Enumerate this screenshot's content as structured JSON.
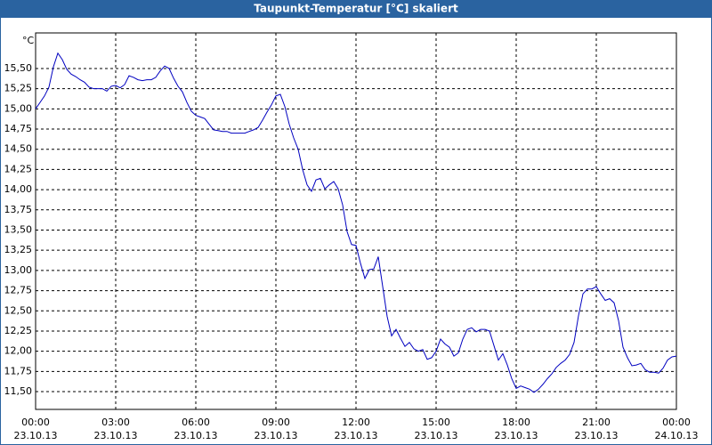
{
  "chart_data": {
    "type": "line",
    "title": "Taupunkt-Temperatur [°C] skaliert",
    "y_label": "°C",
    "x": [
      0,
      10,
      20,
      30,
      40,
      50,
      60,
      70,
      80,
      90,
      100,
      110,
      120,
      130,
      140,
      150,
      160,
      170,
      180,
      190,
      200,
      210,
      220,
      230,
      240,
      250,
      260,
      270,
      280,
      290,
      300,
      310,
      320,
      330,
      340,
      350,
      360,
      370,
      380,
      390,
      400,
      410,
      420,
      430,
      440,
      450,
      460,
      470,
      480,
      490,
      500,
      510,
      520,
      530,
      540,
      550,
      560,
      570,
      580,
      590,
      600,
      610,
      620,
      630,
      640,
      650,
      660,
      670,
      680,
      690,
      700,
      710,
      720,
      730,
      740,
      750,
      760,
      770,
      780,
      790,
      800,
      810,
      820,
      830,
      840,
      850,
      860,
      870,
      880,
      890,
      900,
      910,
      920,
      930,
      940,
      950,
      960,
      970,
      980,
      990,
      1000,
      1010,
      1020,
      1030,
      1040,
      1050,
      1060,
      1070,
      1080,
      1090,
      1100,
      1110,
      1120,
      1130,
      1140,
      1150,
      1160,
      1170,
      1180,
      1190,
      1200,
      1210,
      1220,
      1230,
      1240,
      1250,
      1260,
      1270,
      1280,
      1290,
      1300,
      1310,
      1320,
      1330,
      1340,
      1350,
      1360,
      1370,
      1380,
      1390,
      1400,
      1410,
      1420,
      1430,
      1440
    ],
    "series": [
      {
        "name": "Taupunkt",
        "color": "#0000c0",
        "values": [
          15.0,
          15.08,
          15.16,
          15.27,
          15.52,
          15.69,
          15.61,
          15.49,
          15.43,
          15.4,
          15.36,
          15.33,
          15.27,
          15.25,
          15.25,
          15.25,
          15.22,
          15.28,
          15.29,
          15.26,
          15.3,
          15.41,
          15.39,
          15.36,
          15.35,
          15.36,
          15.36,
          15.39,
          15.47,
          15.53,
          15.5,
          15.38,
          15.28,
          15.21,
          15.08,
          14.97,
          14.92,
          14.9,
          14.88,
          14.81,
          14.74,
          14.73,
          14.72,
          14.72,
          14.7,
          14.7,
          14.7,
          14.7,
          14.72,
          14.74,
          14.77,
          14.86,
          14.96,
          15.05,
          15.16,
          15.18,
          15.03,
          14.81,
          14.64,
          14.5,
          14.25,
          14.06,
          13.98,
          14.12,
          14.14,
          14.01,
          14.06,
          14.1,
          14.01,
          13.81,
          13.48,
          13.32,
          13.31,
          13.09,
          12.9,
          13.01,
          13.02,
          13.17,
          12.8,
          12.43,
          12.19,
          12.27,
          12.16,
          12.06,
          12.11,
          12.03,
          12.0,
          12.02,
          11.9,
          11.92,
          12.0,
          12.15,
          12.09,
          12.05,
          11.94,
          11.98,
          12.15,
          12.27,
          12.29,
          12.24,
          12.27,
          12.27,
          12.25,
          12.07,
          11.89,
          11.97,
          11.83,
          11.66,
          11.54,
          11.57,
          11.55,
          11.53,
          11.49,
          11.53,
          11.59,
          11.66,
          11.72,
          11.8,
          11.85,
          11.89,
          11.96,
          12.11,
          12.44,
          12.71,
          12.77,
          12.77,
          12.8,
          12.71,
          12.63,
          12.65,
          12.6,
          12.38,
          12.05,
          11.92,
          11.82,
          11.83,
          11.85,
          11.77,
          11.74,
          11.74,
          11.73,
          11.79,
          11.89,
          11.93,
          11.94
        ]
      }
    ],
    "xlim": [
      0,
      1440
    ],
    "xticks": [
      {
        "value": 0,
        "label": "00:00"
      },
      {
        "value": 180,
        "label": "03:00"
      },
      {
        "value": 360,
        "label": "06:00"
      },
      {
        "value": 540,
        "label": "09:00"
      },
      {
        "value": 720,
        "label": "12:00"
      },
      {
        "value": 900,
        "label": "15:00"
      },
      {
        "value": 1080,
        "label": "18:00"
      },
      {
        "value": 1260,
        "label": "21:00"
      },
      {
        "value": 1440,
        "label": "00:00"
      }
    ],
    "xtick_dates": [
      "23.10.13",
      "23.10.13",
      "23.10.13",
      "23.10.13",
      "23.10.13",
      "23.10.13",
      "23.10.13",
      "23.10.13",
      "24.10.13"
    ],
    "ylim": [
      11.28,
      15.94
    ],
    "yticks": [
      {
        "value": 11.5,
        "label": "11,50"
      },
      {
        "value": 11.75,
        "label": "11,75"
      },
      {
        "value": 12,
        "label": "12,00"
      },
      {
        "value": 12.25,
        "label": "12,25"
      },
      {
        "value": 12.5,
        "label": "12,50"
      },
      {
        "value": 12.75,
        "label": "12,75"
      },
      {
        "value": 13,
        "label": "13,00"
      },
      {
        "value": 13.25,
        "label": "13,25"
      },
      {
        "value": 13.5,
        "label": "13,50"
      },
      {
        "value": 13.75,
        "label": "13,75"
      },
      {
        "value": 14,
        "label": "14,00"
      },
      {
        "value": 14.25,
        "label": "14,25"
      },
      {
        "value": 14.5,
        "label": "14,50"
      },
      {
        "value": 14.75,
        "label": "14,75"
      },
      {
        "value": 15,
        "label": "15,00"
      },
      {
        "value": 15.25,
        "label": "15,25"
      },
      {
        "value": 15.5,
        "label": "15,50"
      }
    ],
    "grid": true
  }
}
